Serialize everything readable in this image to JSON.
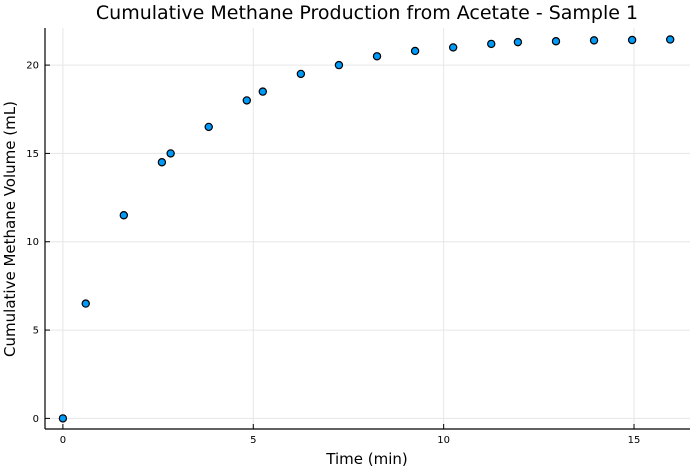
{
  "chart_data": {
    "type": "scatter",
    "title": "Cumulative Methane Production from Acetate - Sample 1",
    "xlabel": "Time (min)",
    "ylabel": "Cumulative Methane Volume (mL)",
    "xlim": [
      -0.47,
      16.47
    ],
    "ylim": [
      -0.6,
      22.1
    ],
    "x_ticks": [
      0,
      5,
      10,
      15
    ],
    "y_ticks": [
      0,
      5,
      10,
      15,
      20
    ],
    "grid": true,
    "legend": "none",
    "marker_color": "#009af9",
    "series": [
      {
        "x": [
          0,
          0.6,
          1.6,
          2.6,
          2.83,
          3.83,
          4.83,
          5.25,
          6.25,
          7.25,
          8.25,
          9.25,
          10.25,
          11.25,
          11.95,
          12.95,
          13.95,
          14.95,
          15.95
        ],
        "y": [
          0,
          6.5,
          11.5,
          14.5,
          15.0,
          16.5,
          18.0,
          18.5,
          19.5,
          20.0,
          20.5,
          20.8,
          21.0,
          21.2,
          21.3,
          21.35,
          21.4,
          21.42,
          21.45
        ]
      }
    ]
  }
}
